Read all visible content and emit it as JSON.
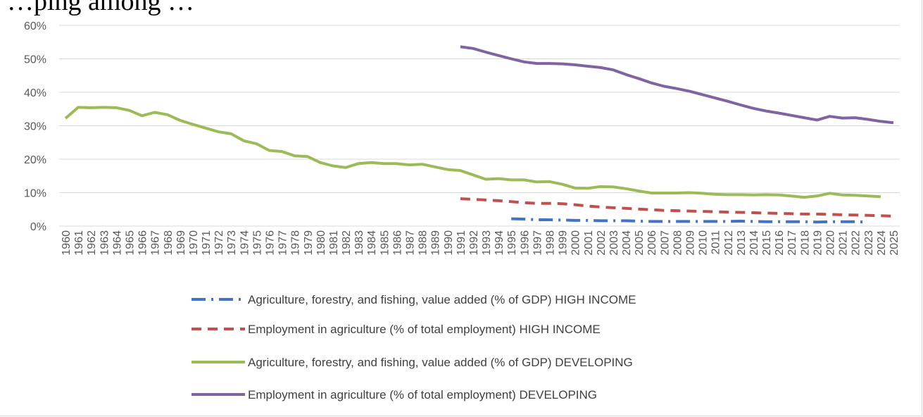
{
  "heading": "…ping among …",
  "chart_data": {
    "type": "line",
    "title": "",
    "xlabel": "",
    "ylabel": "",
    "ylim": [
      0,
      60
    ],
    "y_ticks": [
      "0%",
      "10%",
      "20%",
      "30%",
      "40%",
      "50%",
      "60%"
    ],
    "grid": "horizontal",
    "legend_position": "bottom",
    "categories": [
      "1960",
      "1961",
      "1962",
      "1963",
      "1964",
      "1965",
      "1966",
      "1967",
      "1968",
      "1969",
      "1970",
      "1971",
      "1972",
      "1973",
      "1974",
      "1975",
      "1976",
      "1977",
      "1978",
      "1979",
      "1980",
      "1981",
      "1982",
      "1983",
      "1984",
      "1985",
      "1986",
      "1987",
      "1988",
      "1989",
      "1990",
      "1991",
      "1992",
      "1993",
      "1994",
      "1995",
      "1996",
      "1997",
      "1998",
      "1999",
      "2000",
      "2001",
      "2002",
      "2003",
      "2004",
      "2005",
      "2006",
      "2007",
      "2008",
      "2009",
      "2010",
      "2011",
      "2012",
      "2013",
      "2014",
      "2015",
      "2016",
      "2017",
      "2018",
      "2019",
      "2020",
      "2021",
      "2022",
      "2023",
      "2024",
      "2025"
    ],
    "series": [
      {
        "name": "Agriculture, forestry, and fishing, value added (% of GDP) HIGH INCOME",
        "color": "#4472c4",
        "dash": "long-dash-dot",
        "values": [
          null,
          null,
          null,
          null,
          null,
          null,
          null,
          null,
          null,
          null,
          null,
          null,
          null,
          null,
          null,
          null,
          null,
          null,
          null,
          null,
          null,
          null,
          null,
          null,
          null,
          null,
          null,
          null,
          null,
          null,
          null,
          null,
          null,
          null,
          null,
          2.2,
          2.1,
          1.9,
          1.9,
          1.8,
          1.7,
          1.7,
          1.6,
          1.6,
          1.6,
          1.5,
          1.4,
          1.4,
          1.4,
          1.4,
          1.4,
          1.4,
          1.4,
          1.5,
          1.4,
          1.3,
          1.3,
          1.3,
          1.3,
          1.2,
          1.3,
          1.3,
          1.3,
          1.2,
          null,
          null
        ]
      },
      {
        "name": "Employment in agriculture (% of total employment) HIGH INCOME",
        "color": "#c0504d",
        "dash": "dash",
        "values": [
          null,
          null,
          null,
          null,
          null,
          null,
          null,
          null,
          null,
          null,
          null,
          null,
          null,
          null,
          null,
          null,
          null,
          null,
          null,
          null,
          null,
          null,
          null,
          null,
          null,
          null,
          null,
          null,
          null,
          null,
          null,
          8.2,
          8.0,
          7.8,
          7.6,
          7.3,
          7.0,
          6.8,
          6.8,
          6.7,
          6.4,
          6.0,
          5.7,
          5.5,
          5.3,
          5.1,
          4.9,
          4.7,
          4.6,
          4.5,
          4.4,
          4.3,
          4.2,
          4.1,
          4.0,
          3.9,
          3.8,
          3.7,
          3.6,
          3.6,
          3.5,
          3.4,
          3.3,
          3.2,
          3.1,
          3.0
        ]
      },
      {
        "name": "Agriculture, forestry, and fishing, value added (% of GDP) DEVELOPING",
        "color": "#9bbb59",
        "dash": "solid",
        "values": [
          32.2,
          35.5,
          35.4,
          35.5,
          35.4,
          34.6,
          33.0,
          34.0,
          33.3,
          31.6,
          30.4,
          29.3,
          28.2,
          27.6,
          25.5,
          24.6,
          22.6,
          22.3,
          21.0,
          20.8,
          19.0,
          18.0,
          17.5,
          18.7,
          19.0,
          18.7,
          18.7,
          18.3,
          18.5,
          17.7,
          16.9,
          16.6,
          15.3,
          14.0,
          14.2,
          13.8,
          13.8,
          13.2,
          13.3,
          12.5,
          11.4,
          11.3,
          11.8,
          11.7,
          11.2,
          10.5,
          9.9,
          9.9,
          9.9,
          10.0,
          9.8,
          9.5,
          9.4,
          9.4,
          9.3,
          9.4,
          9.3,
          9.0,
          8.6,
          9.0,
          9.8,
          9.3,
          9.2,
          9.0,
          8.8,
          null
        ]
      },
      {
        "name": "Employment in agriculture (% of total employment) DEVELOPING",
        "color": "#8064a2",
        "dash": "solid",
        "values": [
          null,
          null,
          null,
          null,
          null,
          null,
          null,
          null,
          null,
          null,
          null,
          null,
          null,
          null,
          null,
          null,
          null,
          null,
          null,
          null,
          null,
          null,
          null,
          null,
          null,
          null,
          null,
          null,
          null,
          null,
          null,
          53.6,
          53.1,
          52.0,
          51.0,
          50.0,
          49.1,
          48.6,
          48.6,
          48.5,
          48.2,
          47.8,
          47.4,
          46.7,
          45.3,
          44.1,
          42.8,
          41.8,
          41.1,
          40.3,
          39.3,
          38.3,
          37.3,
          36.2,
          35.2,
          34.4,
          33.8,
          33.1,
          32.4,
          31.7,
          32.8,
          32.3,
          32.4,
          31.9,
          31.3,
          30.9
        ]
      }
    ]
  }
}
